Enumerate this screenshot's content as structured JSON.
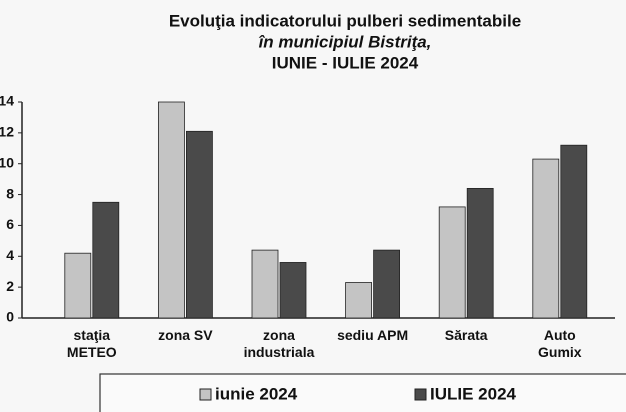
{
  "chart_data": {
    "type": "bar",
    "title": [
      "Evoluţia indicatorului pulberi sedimentabile",
      "în municipiul Bistriţa,",
      "IUNIE - IULIE 2024"
    ],
    "categories": [
      "staţia\nMETEO",
      "zona SV",
      "zona\nindustriala",
      "sediu APM",
      "Sărata",
      "Auto\nGumix"
    ],
    "series": [
      {
        "name": "iunie 2024",
        "color": "#c4c4c4",
        "values": [
          4.2,
          14,
          4.4,
          2.3,
          7.2,
          10.3
        ]
      },
      {
        "name": "IULIE 2024",
        "color": "#4a4a4a",
        "values": [
          7.5,
          12.1,
          3.6,
          4.4,
          8.4,
          11.2
        ]
      }
    ],
    "ylim": [
      0,
      14
    ],
    "yticks": [
      0,
      2,
      4,
      6,
      8,
      10,
      12,
      14
    ],
    "grid": false,
    "legend": "bottom"
  }
}
